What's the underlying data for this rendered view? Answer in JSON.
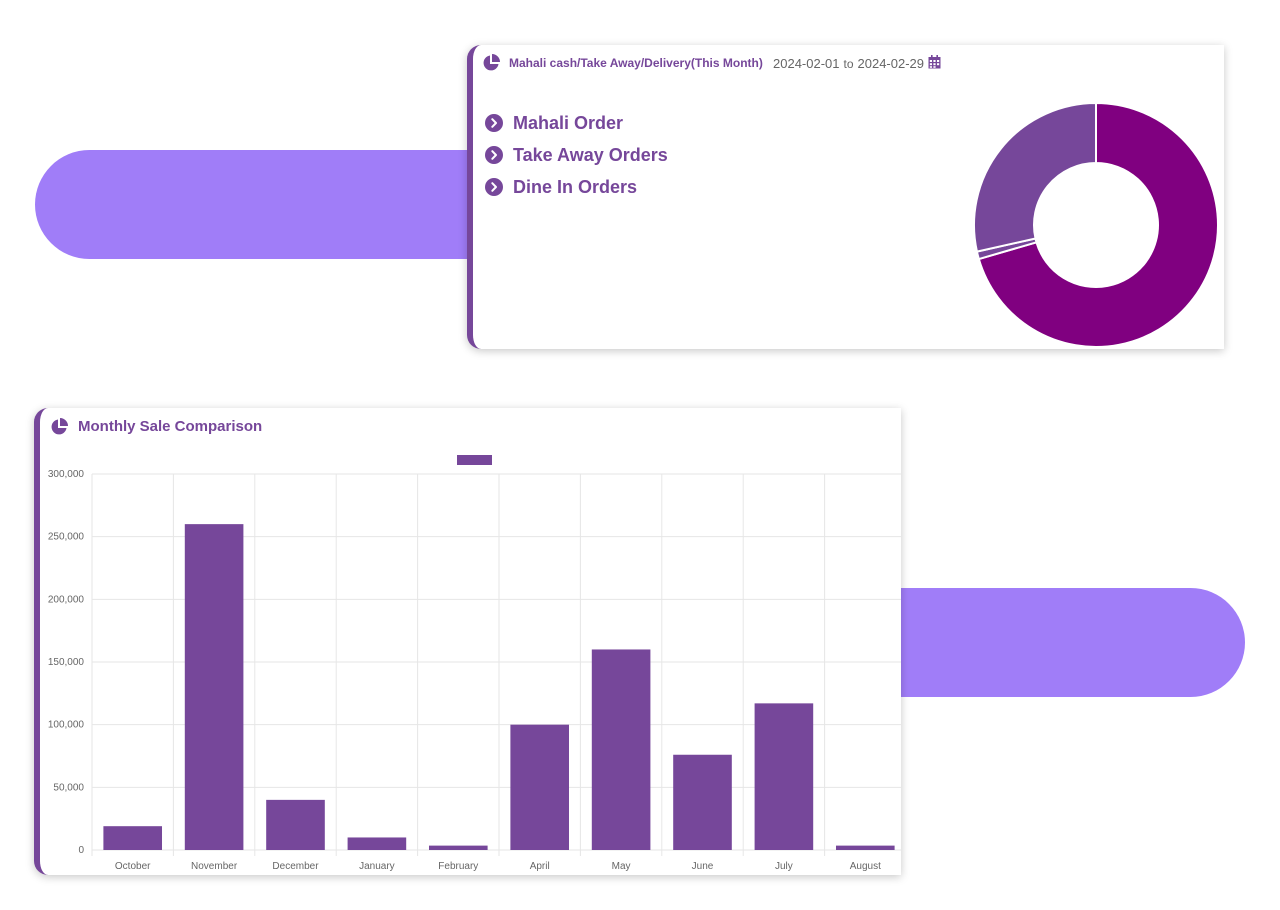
{
  "donut_card": {
    "icon": "pie-chart-icon",
    "title": "Mahali cash/Take Away/Delivery(This Month)",
    "date_from": "2024-02-01",
    "date_to_word": "to",
    "date_to": "2024-02-29",
    "calendar_icon": "calendar-icon",
    "orders": [
      {
        "label": "Mahali Order",
        "icon": "chevron-circle-right-icon"
      },
      {
        "label": "Take Away Orders",
        "icon": "chevron-circle-right-icon"
      },
      {
        "label": "Dine In Orders",
        "icon": "chevron-circle-right-icon"
      }
    ]
  },
  "bar_card": {
    "icon": "pie-chart-icon",
    "title": "Monthly Sale Comparison"
  },
  "colors": {
    "primary": "#76479a",
    "donut_main": "#800080",
    "donut_secondary": "#76479a",
    "accent_pill": "#a07df8"
  },
  "chart_data": [
    {
      "type": "pie",
      "categories": [
        "Mahali Order",
        "Take Away Orders",
        "Dine In Orders"
      ],
      "values": [
        70.5,
        1,
        28.5
      ],
      "style": "donut",
      "colors": [
        "#800080",
        "#76479a",
        "#76479a"
      ]
    },
    {
      "type": "bar",
      "categories": [
        "October",
        "November",
        "December",
        "January",
        "February",
        "April",
        "May",
        "June",
        "July",
        "August"
      ],
      "values": [
        19000,
        260000,
        40000,
        10000,
        3500,
        100000,
        160000,
        76000,
        117000,
        3500
      ],
      "yticks": [
        "0",
        "50,000",
        "100,000",
        "150,000",
        "200,000",
        "250,000",
        "300,000"
      ],
      "ylim": [
        0,
        300000
      ],
      "grid": true,
      "legend_position": "top",
      "bar_color": "#76479a"
    }
  ]
}
